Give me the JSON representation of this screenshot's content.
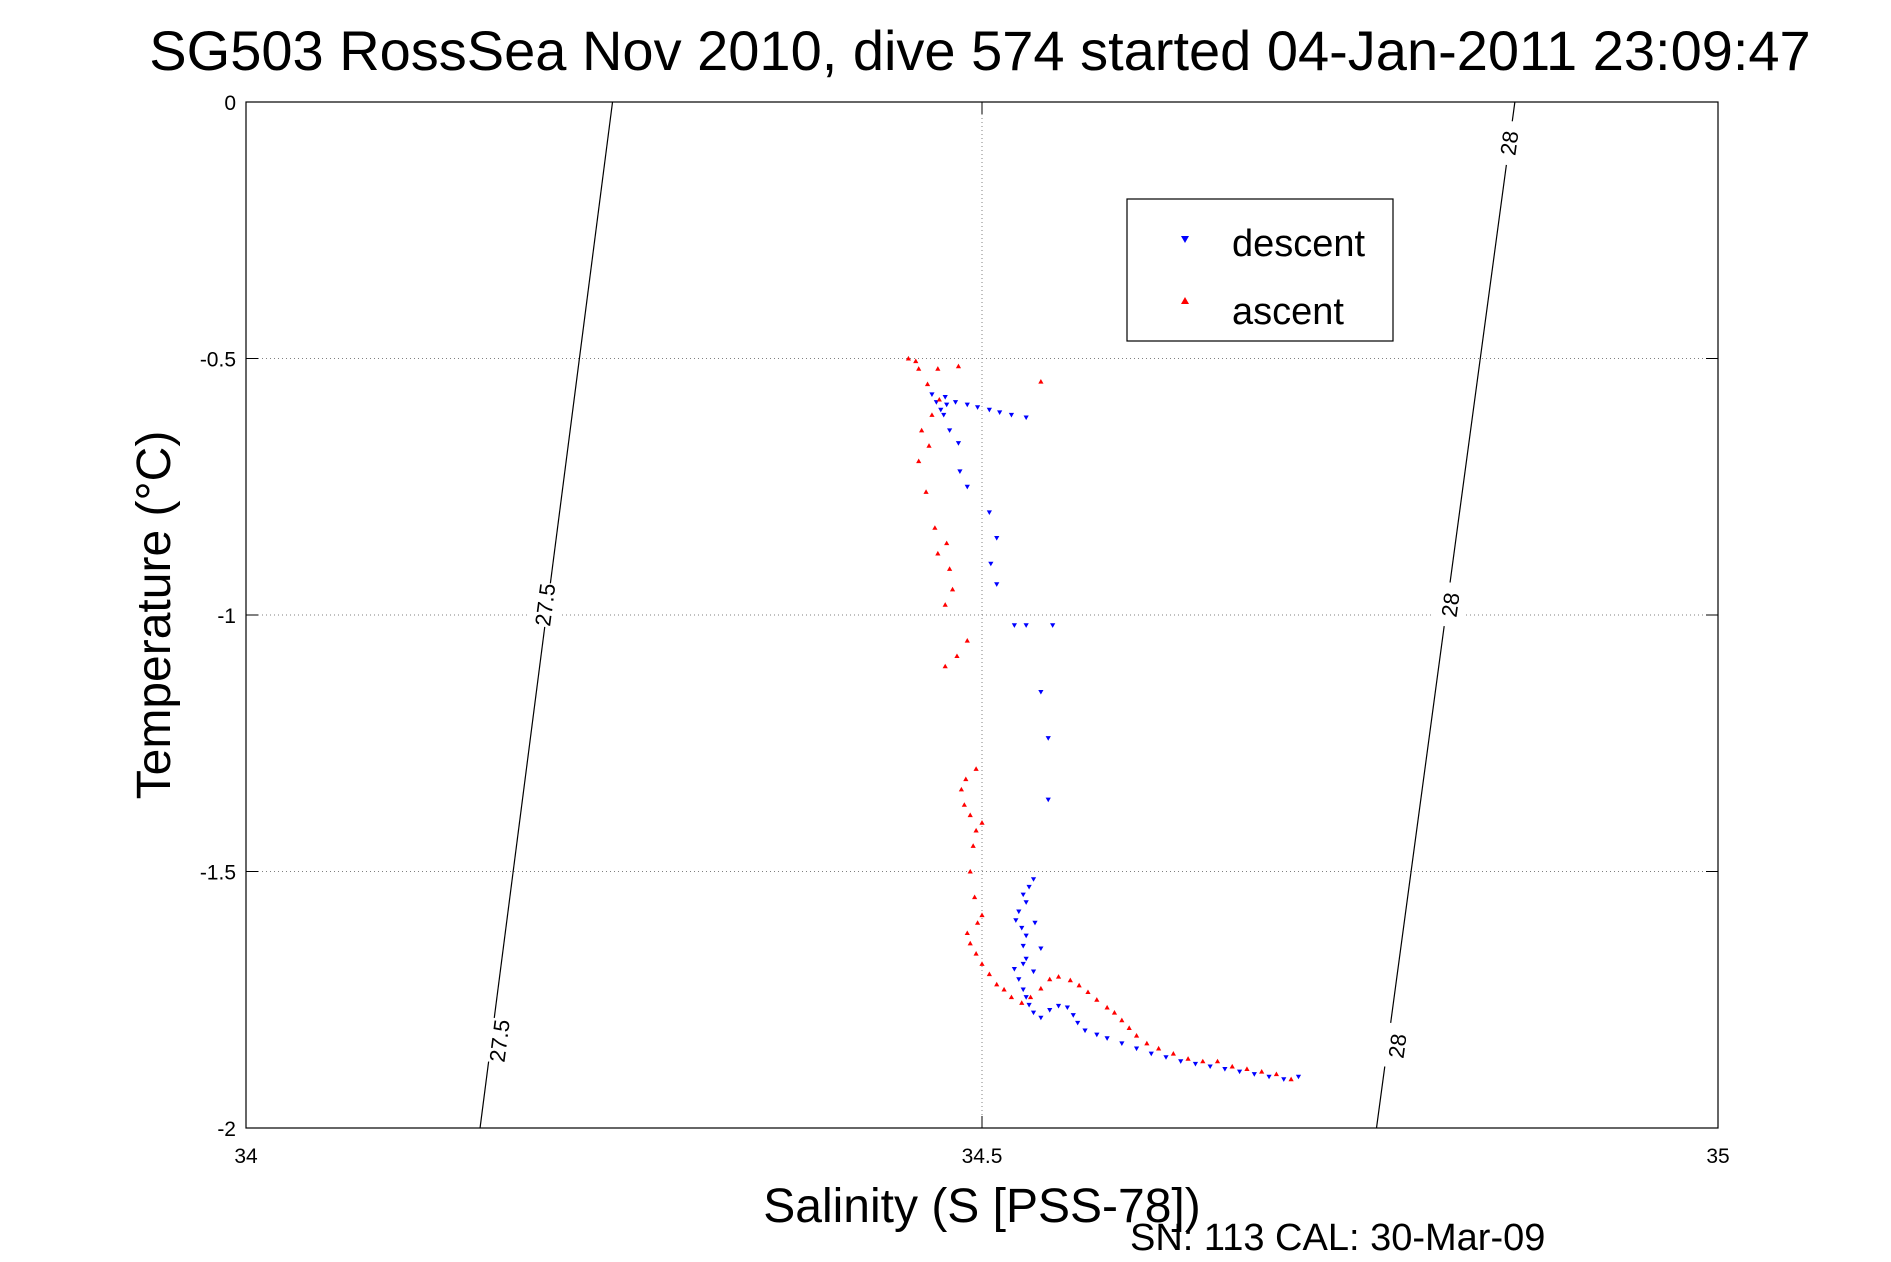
{
  "chart_data": {
    "type": "scatter",
    "title": "SG503 RossSea Nov 2010, dive 574 started 04-Jan-2011 23:09:47",
    "xlabel": "Salinity (S [PSS-78])",
    "ylabel": "Temperature (°C)",
    "footer": "SN: 113  CAL: 30-Mar-09",
    "xlim": [
      34,
      35
    ],
    "ylim": [
      -2,
      0
    ],
    "xticks": [
      34,
      34.5,
      35
    ],
    "yticks": [
      0,
      -0.5,
      -1,
      -1.5,
      -2
    ],
    "xtick_labels": [
      "34",
      "34.5",
      "35"
    ],
    "ytick_labels": [
      "0",
      "-0.5",
      "-1",
      "-1.5",
      "-2"
    ],
    "grid": true,
    "legend": {
      "position": "top-right",
      "entries": [
        {
          "name": "descent",
          "marker": "triangle-down",
          "color": "#0000ff"
        },
        {
          "name": "ascent",
          "marker": "triangle-up",
          "color": "#ff0000"
        }
      ]
    },
    "contours": [
      {
        "label": "27.5",
        "color": "#000000",
        "points": [
          [
            34.159,
            -2
          ],
          [
            34.249,
            0
          ]
        ],
        "label_positions": [
          [
            34.172,
            -1.83
          ],
          [
            34.203,
            -0.98
          ]
        ]
      },
      {
        "label": "28",
        "color": "#000000",
        "points": [
          [
            34.768,
            -2
          ],
          [
            34.862,
            0
          ]
        ],
        "label_positions": [
          [
            34.782,
            -1.84
          ],
          [
            34.818,
            -0.98
          ],
          [
            34.858,
            -0.08
          ]
        ]
      }
    ],
    "series": [
      {
        "name": "descent",
        "color": "#0000ff",
        "marker": "triangle-down",
        "points": [
          [
            34.715,
            -1.9
          ],
          [
            34.705,
            -1.905
          ],
          [
            34.695,
            -1.9
          ],
          [
            34.685,
            -1.895
          ],
          [
            34.675,
            -1.89
          ],
          [
            34.665,
            -1.885
          ],
          [
            34.655,
            -1.88
          ],
          [
            34.645,
            -1.875
          ],
          [
            34.635,
            -1.87
          ],
          [
            34.625,
            -1.862
          ],
          [
            34.615,
            -1.855
          ],
          [
            34.605,
            -1.845
          ],
          [
            34.595,
            -1.835
          ],
          [
            34.585,
            -1.825
          ],
          [
            34.578,
            -1.818
          ],
          [
            34.57,
            -1.81
          ],
          [
            34.565,
            -1.795
          ],
          [
            34.562,
            -1.78
          ],
          [
            34.558,
            -1.765
          ],
          [
            34.552,
            -1.762
          ],
          [
            34.546,
            -1.77
          ],
          [
            34.54,
            -1.785
          ],
          [
            34.535,
            -1.775
          ],
          [
            34.532,
            -1.76
          ],
          [
            34.53,
            -1.745
          ],
          [
            34.528,
            -1.73
          ],
          [
            34.525,
            -1.71
          ],
          [
            34.522,
            -1.69
          ],
          [
            34.528,
            -1.68
          ],
          [
            34.535,
            -1.695
          ],
          [
            34.53,
            -1.67
          ],
          [
            34.528,
            -1.645
          ],
          [
            34.53,
            -1.625
          ],
          [
            34.527,
            -1.61
          ],
          [
            34.523,
            -1.595
          ],
          [
            34.525,
            -1.578
          ],
          [
            34.53,
            -1.56
          ],
          [
            34.528,
            -1.545
          ],
          [
            34.532,
            -1.53
          ],
          [
            34.535,
            -1.515
          ],
          [
            34.54,
            -1.65
          ],
          [
            34.536,
            -1.6
          ],
          [
            34.545,
            -1.36
          ],
          [
            34.545,
            -1.24
          ],
          [
            34.54,
            -1.15
          ],
          [
            34.522,
            -1.02
          ],
          [
            34.53,
            -1.02
          ],
          [
            34.548,
            -1.02
          ],
          [
            34.51,
            -0.94
          ],
          [
            34.506,
            -0.9
          ],
          [
            34.51,
            -0.85
          ],
          [
            34.505,
            -0.8
          ],
          [
            34.49,
            -0.75
          ],
          [
            34.485,
            -0.72
          ],
          [
            34.484,
            -0.665
          ],
          [
            34.478,
            -0.64
          ],
          [
            34.474,
            -0.61
          ],
          [
            34.476,
            -0.59
          ],
          [
            34.482,
            -0.585
          ],
          [
            34.49,
            -0.59
          ],
          [
            34.497,
            -0.595
          ],
          [
            34.505,
            -0.6
          ],
          [
            34.512,
            -0.605
          ],
          [
            34.52,
            -0.61
          ],
          [
            34.53,
            -0.615
          ],
          [
            34.466,
            -0.57
          ],
          [
            34.469,
            -0.585
          ],
          [
            34.472,
            -0.6
          ],
          [
            34.475,
            -0.575
          ]
        ]
      },
      {
        "name": "ascent",
        "color": "#ff0000",
        "marker": "triangle-up",
        "points": [
          [
            34.71,
            -1.905
          ],
          [
            34.7,
            -1.895
          ],
          [
            34.69,
            -1.89
          ],
          [
            34.68,
            -1.885
          ],
          [
            34.67,
            -1.88
          ],
          [
            34.66,
            -1.87
          ],
          [
            34.65,
            -1.87
          ],
          [
            34.64,
            -1.865
          ],
          [
            34.63,
            -1.855
          ],
          [
            34.62,
            -1.845
          ],
          [
            34.612,
            -1.835
          ],
          [
            34.605,
            -1.82
          ],
          [
            34.6,
            -1.805
          ],
          [
            34.595,
            -1.79
          ],
          [
            34.59,
            -1.775
          ],
          [
            34.585,
            -1.765
          ],
          [
            34.578,
            -1.75
          ],
          [
            34.572,
            -1.735
          ],
          [
            34.566,
            -1.722
          ],
          [
            34.56,
            -1.712
          ],
          [
            34.552,
            -1.705
          ],
          [
            34.546,
            -1.71
          ],
          [
            34.54,
            -1.728
          ],
          [
            34.533,
            -1.745
          ],
          [
            34.527,
            -1.756
          ],
          [
            34.52,
            -1.745
          ],
          [
            34.515,
            -1.73
          ],
          [
            34.51,
            -1.72
          ],
          [
            34.505,
            -1.7
          ],
          [
            34.5,
            -1.68
          ],
          [
            34.496,
            -1.66
          ],
          [
            34.492,
            -1.64
          ],
          [
            34.49,
            -1.62
          ],
          [
            34.497,
            -1.6
          ],
          [
            34.5,
            -1.585
          ],
          [
            34.495,
            -1.55
          ],
          [
            34.492,
            -1.5
          ],
          [
            34.494,
            -1.45
          ],
          [
            34.496,
            -1.42
          ],
          [
            34.5,
            -1.405
          ],
          [
            34.492,
            -1.39
          ],
          [
            34.488,
            -1.37
          ],
          [
            34.486,
            -1.34
          ],
          [
            34.489,
            -1.32
          ],
          [
            34.496,
            -1.3
          ],
          [
            34.475,
            -1.1
          ],
          [
            34.483,
            -1.08
          ],
          [
            34.49,
            -1.05
          ],
          [
            34.475,
            -0.98
          ],
          [
            34.48,
            -0.95
          ],
          [
            34.478,
            -0.91
          ],
          [
            34.47,
            -0.88
          ],
          [
            34.476,
            -0.86
          ],
          [
            34.468,
            -0.83
          ],
          [
            34.462,
            -0.76
          ],
          [
            34.457,
            -0.7
          ],
          [
            34.464,
            -0.67
          ],
          [
            34.459,
            -0.64
          ],
          [
            34.466,
            -0.61
          ],
          [
            34.471,
            -0.58
          ],
          [
            34.463,
            -0.55
          ],
          [
            34.457,
            -0.52
          ],
          [
            34.45,
            -0.5
          ],
          [
            34.455,
            -0.505
          ],
          [
            34.47,
            -0.52
          ],
          [
            34.484,
            -0.515
          ],
          [
            34.54,
            -0.545
          ]
        ]
      }
    ]
  }
}
